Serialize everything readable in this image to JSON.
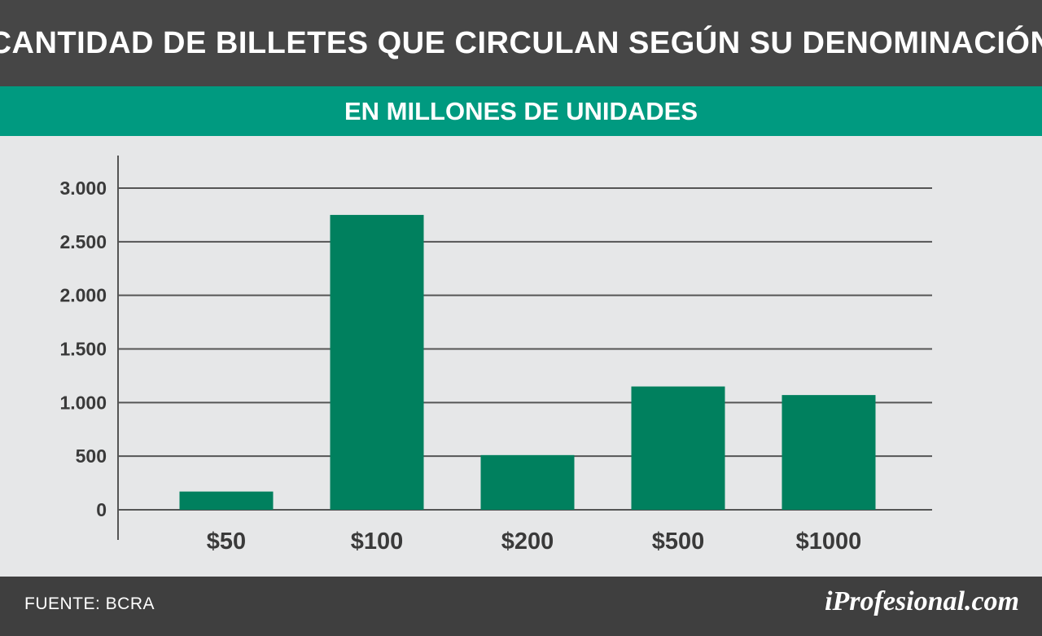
{
  "header": {
    "title": "CANTIDAD DE BILLETES QUE CIRCULAN SEGÚN SU DENOMINACIÓN",
    "subtitle": "EN MILLONES DE UNIDADES"
  },
  "footer": {
    "source": "FUENTE: BCRA",
    "logo": "iProfesional.com"
  },
  "colors": {
    "header_bg": "#464646",
    "subheader_bg": "#009a80",
    "bar": "#00805e",
    "plot_bg": "#e6e7e8",
    "grid": "#555555"
  },
  "chart_data": {
    "type": "bar",
    "title": "CANTIDAD DE BILLETES QUE CIRCULAN SEGÚN SU DENOMINACIÓN",
    "subtitle": "EN MILLONES DE UNIDADES",
    "categories": [
      "$50",
      "$100",
      "$200",
      "$500",
      "$1000"
    ],
    "values": [
      170,
      2750,
      510,
      1150,
      1070
    ],
    "yticks": [
      0,
      500,
      1000,
      1500,
      2000,
      2500,
      3000
    ],
    "ytick_labels": [
      "0",
      "500",
      "1.000",
      "1.500",
      "2.000",
      "2.500",
      "3.000"
    ],
    "ylim": [
      0,
      3000
    ],
    "xlabel": "",
    "ylabel": "",
    "grid": true,
    "legend": "none"
  }
}
